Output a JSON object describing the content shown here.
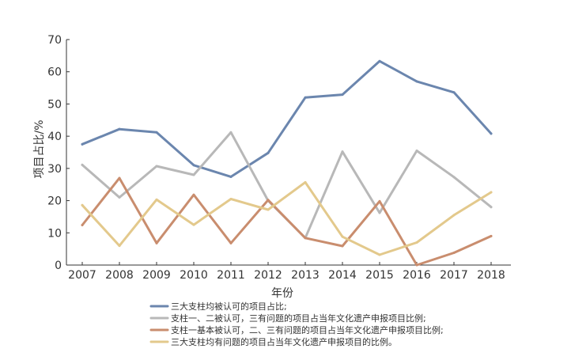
{
  "chart_data": {
    "type": "line",
    "title": "",
    "xlabel": "年份",
    "ylabel": "项目占比/%",
    "categories": [
      "2007",
      "2008",
      "2009",
      "2010",
      "2011",
      "2012",
      "2013",
      "2014",
      "2015",
      "2016",
      "2017",
      "2018"
    ],
    "ylim": [
      0,
      70
    ],
    "yticks": [
      0,
      10,
      20,
      30,
      40,
      50,
      60,
      70
    ],
    "grid": false,
    "legend_position": "bottom",
    "series": [
      {
        "name": "三大支柱均被认可的项目占比;",
        "color": "#6b86ae",
        "values": [
          37.5,
          42.2,
          41.2,
          31.0,
          27.4,
          34.8,
          52.0,
          52.9,
          63.3,
          57.0,
          53.6,
          40.8
        ]
      },
      {
        "name": "支柱一、二被认可，三有问题的项目占当年文化遗产申报项目比例;",
        "color": "#b8b8b8",
        "values": [
          31.1,
          21.0,
          30.7,
          28.0,
          41.2,
          20.0,
          8.4,
          35.2,
          16.2,
          35.5,
          27.3,
          18.0
        ]
      },
      {
        "name": "支柱一基本被认可，二、三有问题的项目占当年文化遗产申报项目比例;",
        "color": "#c98d6e",
        "values": [
          12.4,
          27.0,
          6.8,
          21.8,
          6.8,
          20.2,
          8.4,
          5.9,
          19.8,
          0,
          3.8,
          9.0
        ]
      },
      {
        "name": "三大支柱均有问题的项目占当年文化遗产申报项目的比例。",
        "color": "#e3c98c",
        "values": [
          18.6,
          6.0,
          20.3,
          12.5,
          20.5,
          17.2,
          25.7,
          8.8,
          3.2,
          7.0,
          15.5,
          22.6
        ]
      }
    ]
  }
}
